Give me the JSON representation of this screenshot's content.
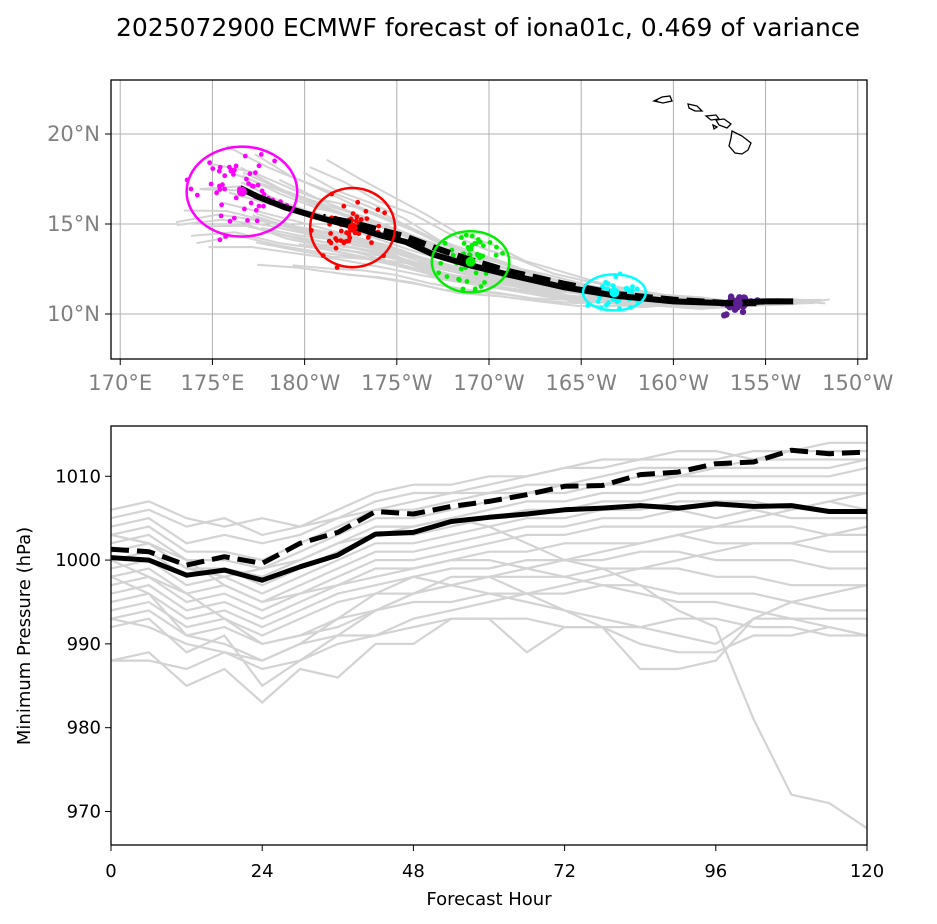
{
  "title": "2025072900 ECMWF forecast of iona01c, 0.469 of variance",
  "colors": {
    "ensemble": "#d3d3d3",
    "mean": "#000000",
    "grid": "#b0b0b0",
    "tick_map": "#808080",
    "uncertainty": [
      "#ff00ff",
      "#ff0000",
      "#00ee00",
      "#00ffff",
      "#5b1f8f"
    ]
  },
  "chart_data": [
    {
      "type": "line",
      "subtype": "track-map",
      "x_ticks": [
        "170°E",
        "175°E",
        "180°W",
        "175°W",
        "170°W",
        "165°W",
        "160°W",
        "155°W",
        "150°W"
      ],
      "x_tick_values": [
        170,
        175,
        180,
        185,
        190,
        195,
        200,
        205,
        210
      ],
      "y_ticks": [
        "10°N",
        "15°N",
        "20°N"
      ],
      "y_tick_values": [
        10,
        15,
        20
      ],
      "xlim": [
        169.5,
        210.5
      ],
      "ylim": [
        7.5,
        23
      ],
      "grid": true,
      "series": [
        {
          "style": "solid",
          "points": [
            [
              206.5,
              10.7
            ],
            [
              205,
              10.7
            ],
            [
              203,
              10.6
            ],
            [
              200,
              10.7
            ],
            [
              197,
              11
            ],
            [
              194,
              11.5
            ],
            [
              191,
              12.2
            ],
            [
              189,
              12.7
            ],
            [
              187,
              13.3
            ],
            [
              185.5,
              14
            ],
            [
              184,
              14.4
            ],
            [
              182.5,
              14.9
            ],
            [
              181,
              15.3
            ],
            [
              179,
              15.9
            ],
            [
              177.5,
              16.5
            ],
            [
              176.5,
              17
            ]
          ]
        },
        {
          "style": "dashed",
          "points": [
            [
              204.5,
              10.6
            ],
            [
              203,
              10.6
            ],
            [
              200,
              10.8
            ],
            [
              197,
              11.1
            ],
            [
              194,
              11.7
            ],
            [
              191,
              12.4
            ],
            [
              189,
              13
            ],
            [
              187,
              13.7
            ],
            [
              185.5,
              14.3
            ],
            [
              184,
              14.7
            ],
            [
              182.5,
              15.1
            ],
            [
              181,
              15.4
            ]
          ]
        }
      ],
      "uncertainty_ellipses": [
        {
          "lon": 176.6,
          "lat": 16.8,
          "rlon": 3.0,
          "rlat": 2.5
        },
        {
          "lon": 182.6,
          "lat": 14.8,
          "rlon": 2.3,
          "rlat": 2.2
        },
        {
          "lon": 189.0,
          "lat": 12.9,
          "rlon": 2.1,
          "rlat": 1.7
        },
        {
          "lon": 196.8,
          "lat": 11.2,
          "rlon": 1.7,
          "rlat": 1.0
        },
        {
          "lon": 203.5,
          "lat": 10.6,
          "rlon": 1.0,
          "rlat": 0.5
        }
      ],
      "landmass": "Hawaiian Islands"
    },
    {
      "type": "line",
      "xlabel": "Forecast Hour",
      "ylabel": "Minimum Pressure (hPa)",
      "x_ticks": [
        0,
        24,
        48,
        72,
        96,
        120
      ],
      "y_ticks": [
        970,
        980,
        990,
        1000,
        1010
      ],
      "xlim": [
        0,
        120
      ],
      "ylim": [
        966,
        1016
      ],
      "grid": false,
      "x": [
        0,
        6,
        12,
        18,
        24,
        30,
        36,
        42,
        48,
        54,
        60,
        66,
        72,
        78,
        84,
        90,
        96,
        102,
        108,
        114,
        120
      ],
      "series": [
        {
          "style": "solid",
          "values": [
            1000.3,
            1000,
            998.2,
            998.8,
            997.6,
            999.2,
            1000.6,
            1003.1,
            1003.3,
            1004.6,
            1005.1,
            1005.5,
            1006,
            1006.2,
            1006.5,
            1006.2,
            1006.7,
            1006.4,
            1006.5,
            1005.8,
            1005.8
          ]
        },
        {
          "style": "dashed",
          "values": [
            1001.3,
            1001,
            999.4,
            1000.4,
            999.6,
            1002,
            1003.3,
            1005.8,
            1005.5,
            1006.4,
            1007,
            1007.8,
            1008.8,
            1008.9,
            1010.2,
            1010.5,
            1011.5,
            1011.7,
            1013.1,
            1012.7,
            1012.9
          ]
        }
      ],
      "ensemble": [
        [
          1006,
          1007,
          1005,
          1004,
          1005,
          1004,
          1005,
          1007,
          1008,
          1008,
          1009,
          1010,
          1011,
          1012,
          1012,
          1013,
          1013,
          1012,
          1013,
          1014,
          1014
        ],
        [
          1005,
          1006,
          1004,
          1005,
          1003,
          1004,
          1006,
          1008,
          1009,
          1009,
          1010,
          1010,
          1011,
          1011,
          1012,
          1012,
          1012,
          1013,
          1013,
          1013,
          1013
        ],
        [
          1004,
          1005,
          1002,
          1003,
          1002,
          1003,
          1005,
          1006,
          1007,
          1008,
          1008,
          1009,
          1009,
          1010,
          1011,
          1011,
          1011,
          1012,
          1012,
          1012,
          1012
        ],
        [
          1003,
          1004,
          1001,
          1001,
          1000,
          1002,
          1004,
          1006,
          1006,
          1007,
          1008,
          1008,
          1009,
          1009,
          1010,
          1010,
          1011,
          1011,
          1011,
          1011,
          1012
        ],
        [
          1002,
          1003,
          1000,
          1000,
          999,
          1001,
          1003,
          1005,
          1005,
          1006,
          1007,
          1008,
          1008,
          1009,
          1009,
          1010,
          1010,
          1010,
          1010,
          1010,
          1011
        ],
        [
          1001,
          1002,
          999,
          999,
          998,
          1000,
          1002,
          1004,
          1004,
          1005,
          1006,
          1007,
          1007,
          1008,
          1008,
          1009,
          1009,
          1009,
          1009,
          1009,
          1009
        ],
        [
          1000,
          1001,
          998,
          999,
          997,
          999,
          1001,
          1003,
          1003,
          1004,
          1005,
          1006,
          1006,
          1007,
          1007,
          1008,
          1008,
          1008,
          1008,
          1008,
          1008
        ],
        [
          999,
          1000,
          997,
          998,
          996,
          998,
          1000,
          1002,
          1002,
          1003,
          1004,
          1005,
          1005,
          1006,
          1006,
          1007,
          1007,
          1007,
          1006,
          1007,
          1006
        ],
        [
          998,
          999,
          996,
          997,
          995,
          997,
          999,
          1001,
          1001,
          1002,
          1003,
          1004,
          1004,
          1005,
          1005,
          1006,
          1005,
          1006,
          1005,
          1005,
          1005
        ],
        [
          997,
          998,
          995,
          996,
          994,
          996,
          998,
          1000,
          1000,
          1001,
          1002,
          1003,
          1003,
          1004,
          1004,
          1004,
          1004,
          1004,
          1004,
          1003,
          1003
        ],
        [
          996,
          997,
          994,
          995,
          993,
          995,
          997,
          999,
          999,
          1000,
          1001,
          1001,
          1002,
          1002,
          1002,
          1003,
          1002,
          1002,
          1002,
          1001,
          1001
        ],
        [
          995,
          996,
          993,
          994,
          992,
          994,
          996,
          997,
          998,
          999,
          999,
          1000,
          1000,
          1000,
          1001,
          1001,
          1000,
          1000,
          1000,
          999,
          999
        ],
        [
          994,
          995,
          992,
          993,
          991,
          993,
          995,
          996,
          996,
          997,
          998,
          998,
          998,
          999,
          999,
          999,
          998,
          998,
          997,
          997,
          997
        ],
        [
          993,
          994,
          991,
          992,
          990,
          991,
          993,
          994,
          995,
          995,
          996,
          996,
          996,
          997,
          997,
          996,
          996,
          996,
          995,
          994,
          994
        ],
        [
          998,
          996,
          991,
          990,
          988,
          990,
          993,
          996,
          998,
          997,
          996,
          995,
          994,
          993,
          992,
          991,
          990,
          993,
          995,
          996,
          997
        ],
        [
          993,
          992,
          990,
          989,
          987,
          988,
          990,
          991,
          993,
          994,
          995,
          996,
          997,
          998,
          999,
          1000,
          1001,
          1002,
          1002,
          1003,
          1004
        ],
        [
          1003,
          1002,
          1000,
          997,
          995,
          996,
          997,
          998,
          999,
          1000,
          1000,
          999,
          998,
          997,
          996,
          995,
          995,
          994,
          993,
          992,
          991
        ],
        [
          1000,
          998,
          996,
          993,
          990,
          991,
          992,
          994,
          996,
          997,
          998,
          999,
          1000,
          1001,
          1002,
          1003,
          1004,
          1005,
          1006,
          1007,
          1008
        ],
        [
          988,
          988,
          987,
          989,
          988,
          990,
          991,
          991,
          992,
          993,
          993,
          993,
          992,
          992,
          992,
          993,
          993,
          992,
          992,
          991,
          991
        ],
        [
          988,
          989,
          985,
          987,
          983,
          987,
          986,
          990,
          990,
          993,
          993,
          989,
          992,
          992,
          987,
          987,
          988,
          993,
          993,
          993,
          993
        ],
        [
          992,
          993,
          989,
          991,
          985,
          988,
          991,
          994,
          996,
          998,
          998,
          996,
          994,
          992,
          990,
          989,
          989,
          991,
          991,
          992,
          991
        ],
        [
          1003,
          1002,
          999,
          998,
          999,
          1000,
          1002,
          1003,
          1004,
          1005,
          1004,
          1002,
          1000,
          999,
          997,
          994,
          992,
          981,
          972,
          971,
          968
        ]
      ]
    }
  ]
}
